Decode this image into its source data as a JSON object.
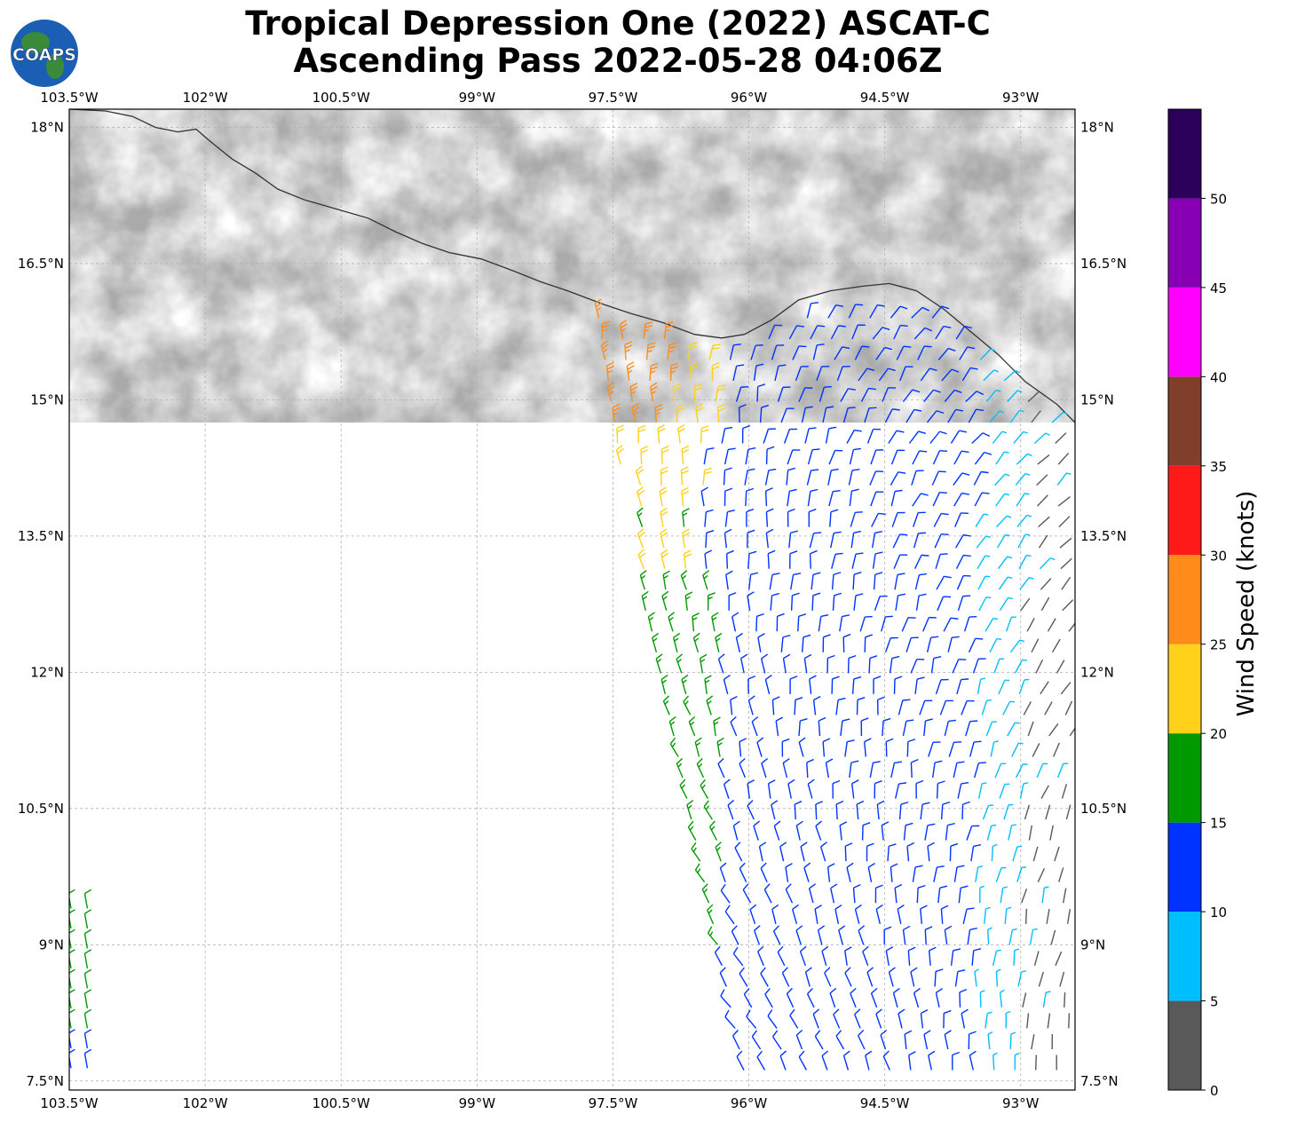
{
  "title": {
    "line1": "Tropical Depression One (2022) ASCAT-C",
    "line2": "Ascending Pass 2022-05-28 04:06Z"
  },
  "logo": {
    "text": "COAPS"
  },
  "map": {
    "lon_range": [
      -103.5,
      -92.4
    ],
    "lat_range": [
      7.4,
      18.2
    ],
    "lon_ticks": [
      {
        "v": -103.5,
        "label": "103.5°W"
      },
      {
        "v": -102,
        "label": "102°W"
      },
      {
        "v": -100.5,
        "label": "100.5°W"
      },
      {
        "v": -99,
        "label": "99°W"
      },
      {
        "v": -97.5,
        "label": "97.5°W"
      },
      {
        "v": -96,
        "label": "96°W"
      },
      {
        "v": -94.5,
        "label": "94.5°W"
      },
      {
        "v": -93,
        "label": "93°W"
      }
    ],
    "lat_ticks": [
      {
        "v": 18,
        "label": "18°N"
      },
      {
        "v": 16.5,
        "label": "16.5°N"
      },
      {
        "v": 15,
        "label": "15°N"
      },
      {
        "v": 13.5,
        "label": "13.5°N"
      },
      {
        "v": 12,
        "label": "12°N"
      },
      {
        "v": 10.5,
        "label": "10.5°N"
      },
      {
        "v": 9,
        "label": "9°N"
      },
      {
        "v": 7.5,
        "label": "7.5°N"
      }
    ],
    "coastline": [
      [
        -103.5,
        18.2
      ],
      [
        -103.1,
        18.18
      ],
      [
        -102.8,
        18.12
      ],
      [
        -102.55,
        18.0
      ],
      [
        -102.3,
        17.95
      ],
      [
        -102.1,
        17.98
      ],
      [
        -101.95,
        17.85
      ],
      [
        -101.7,
        17.65
      ],
      [
        -101.45,
        17.5
      ],
      [
        -101.2,
        17.32
      ],
      [
        -100.9,
        17.2
      ],
      [
        -100.55,
        17.1
      ],
      [
        -100.2,
        17.0
      ],
      [
        -99.9,
        16.85
      ],
      [
        -99.6,
        16.72
      ],
      [
        -99.3,
        16.62
      ],
      [
        -98.95,
        16.55
      ],
      [
        -98.6,
        16.42
      ],
      [
        -98.3,
        16.3
      ],
      [
        -98.0,
        16.2
      ],
      [
        -97.6,
        16.05
      ],
      [
        -97.3,
        15.95
      ],
      [
        -96.95,
        15.85
      ],
      [
        -96.6,
        15.72
      ],
      [
        -96.3,
        15.68
      ],
      [
        -96.05,
        15.72
      ],
      [
        -95.75,
        15.88
      ],
      [
        -95.45,
        16.1
      ],
      [
        -95.1,
        16.2
      ],
      [
        -94.75,
        16.25
      ],
      [
        -94.45,
        16.28
      ],
      [
        -94.15,
        16.2
      ],
      [
        -93.85,
        16.0
      ],
      [
        -93.55,
        15.75
      ],
      [
        -93.25,
        15.5
      ],
      [
        -92.95,
        15.2
      ],
      [
        -92.6,
        14.95
      ],
      [
        -92.4,
        14.75
      ]
    ],
    "scale_bins": [
      {
        "min": 0,
        "max": 5,
        "color": "#595959"
      },
      {
        "min": 5,
        "max": 10,
        "color": "#00bfff"
      },
      {
        "min": 10,
        "max": 15,
        "color": "#0033ff"
      },
      {
        "min": 15,
        "max": 20,
        "color": "#009900"
      },
      {
        "min": 20,
        "max": 25,
        "color": "#ffd11a"
      },
      {
        "min": 25,
        "max": 30,
        "color": "#ff8c1a"
      },
      {
        "min": 30,
        "max": 35,
        "color": "#ff1a1a"
      },
      {
        "min": 35,
        "max": 40,
        "color": "#7f3f2a"
      },
      {
        "min": 40,
        "max": 45,
        "color": "#ff00ff"
      },
      {
        "min": 45,
        "max": 50,
        "color": "#8800b3"
      },
      {
        "min": 50,
        "max": 55,
        "color": "#2b0059"
      }
    ]
  },
  "colorbar": {
    "label": "Wind Speed (knots)",
    "ticks": [
      "0",
      "5",
      "10",
      "15",
      "20",
      "25",
      "30",
      "35",
      "40",
      "45",
      "50"
    ]
  }
}
